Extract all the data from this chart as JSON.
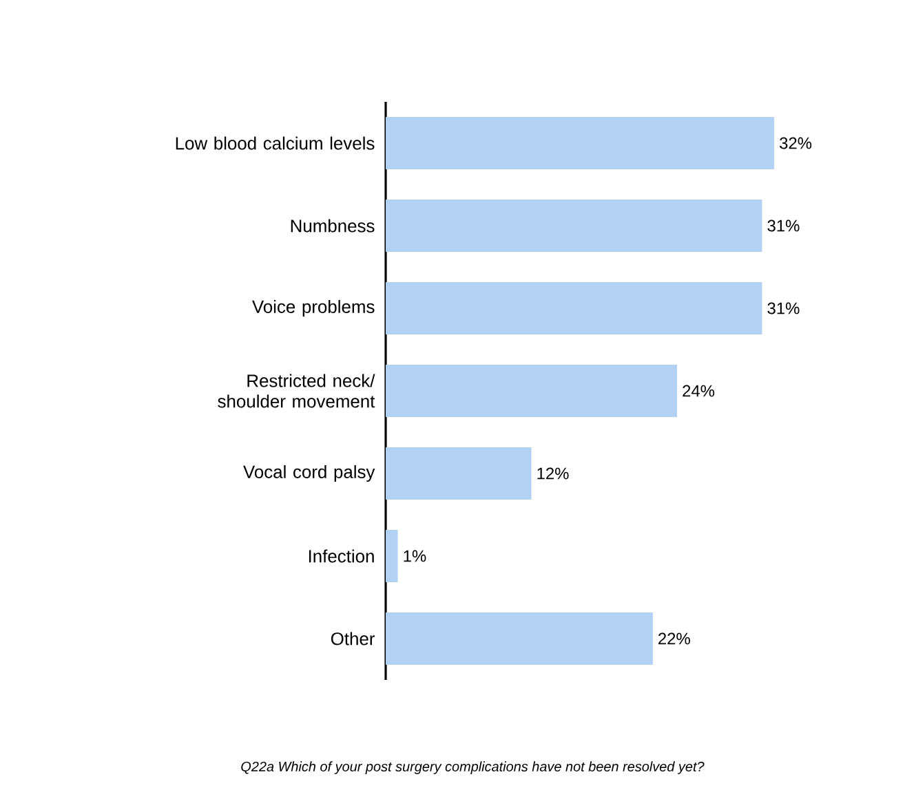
{
  "chart_data": {
    "type": "bar",
    "orientation": "horizontal",
    "categories": [
      "Low blood calcium levels",
      "Numbness",
      "Voice problems",
      "Restricted neck/ shoulder movement",
      "Vocal cord palsy",
      "Infection",
      "Other"
    ],
    "values": [
      32,
      31,
      31,
      24,
      12,
      1,
      22
    ],
    "value_labels": [
      "32%",
      "31%",
      "31%",
      "24%",
      "12%",
      "1%",
      "22%"
    ],
    "color": "#b3d1f2",
    "annotations": [
      "Q22a Which of your post surgery complications have not been resolved yet?"
    ]
  }
}
